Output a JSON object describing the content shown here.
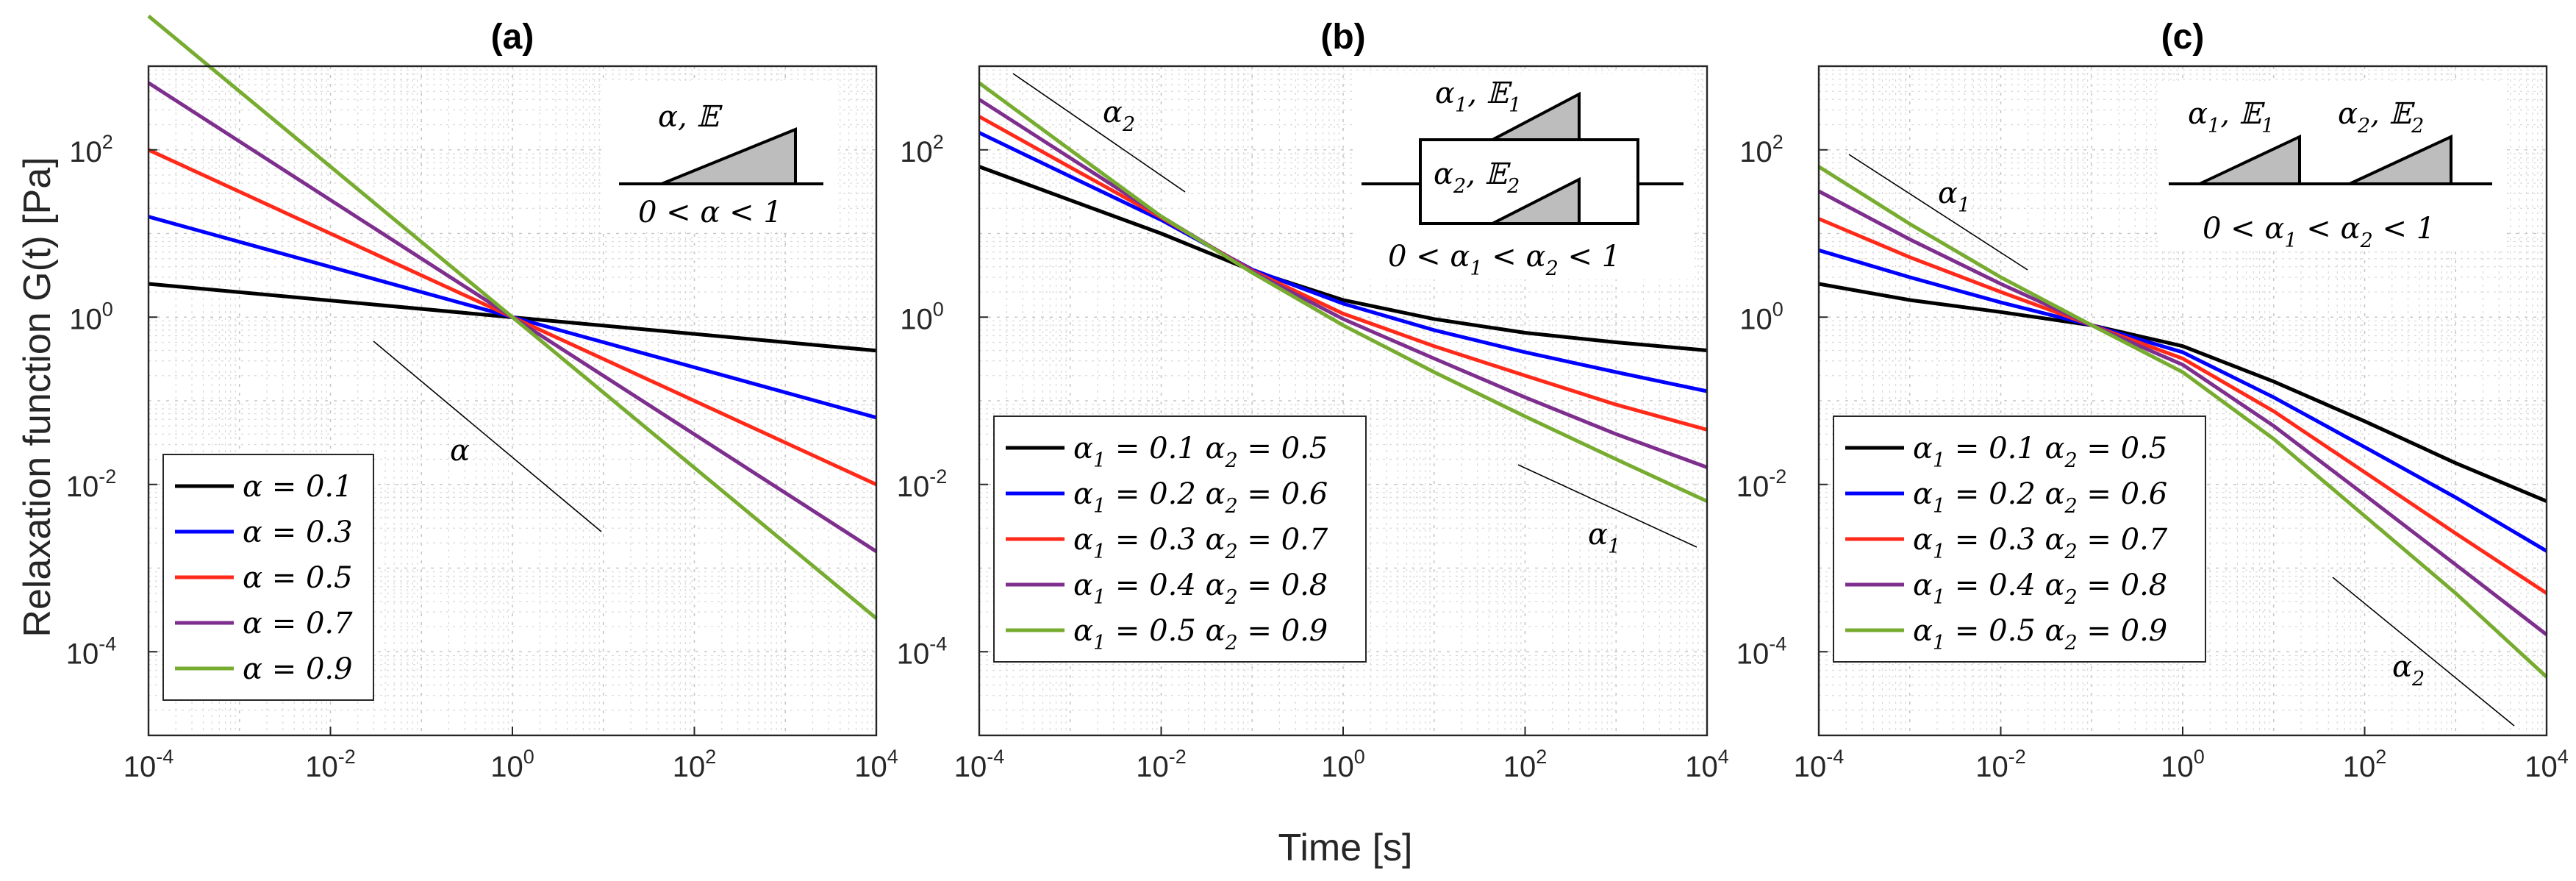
{
  "figure": {
    "x_axis_label": "Time [s]",
    "y_axis_label": "Relaxation function G(t) [Pa]"
  },
  "chart_data": [
    {
      "type": "line",
      "panel": "(a)",
      "title": "(a)",
      "xlabel": "Time [s]",
      "ylabel": "Relaxation function G(t) [Pa]",
      "xscale": "log",
      "yscale": "log",
      "xlim": [
        0.0001,
        10000
      ],
      "ylim": [
        1e-05,
        1000
      ],
      "grid": true,
      "x_ticks": [
        {
          "base": "10",
          "exp": "-4"
        },
        {
          "base": "10",
          "exp": "-2"
        },
        {
          "base": "10",
          "exp": "0"
        },
        {
          "base": "10",
          "exp": "2"
        },
        {
          "base": "10",
          "exp": "4"
        }
      ],
      "y_ticks": [
        {
          "base": "10",
          "exp": "-4"
        },
        {
          "base": "10",
          "exp": "-2"
        },
        {
          "base": "10",
          "exp": "0"
        },
        {
          "base": "10",
          "exp": "2"
        }
      ],
      "series": [
        {
          "name": "α = 0.1",
          "color": "#000000",
          "x": [
            0.0001,
            10000
          ],
          "y": [
            2.5,
            0.398
          ]
        },
        {
          "name": "α = 0.3",
          "color": "#0000ff",
          "x": [
            0.0001,
            10000
          ],
          "y": [
            15.85,
            0.063
          ]
        },
        {
          "name": "α = 0.5",
          "color": "#ff2a1a",
          "x": [
            0.0001,
            10000
          ],
          "y": [
            100,
            0.01
          ]
        },
        {
          "name": "α = 0.7",
          "color": "#7e2f8e",
          "x": [
            0.0001,
            10000
          ],
          "y": [
            631,
            0.00158
          ]
        },
        {
          "name": "α = 0.9",
          "color": "#77ac30",
          "x": [
            0.0001,
            10000
          ],
          "y": [
            3981,
            0.000251
          ]
        }
      ],
      "legend": {
        "position": "lower-left",
        "entries": [
          {
            "symbol": "α",
            "sub": "",
            "text": " = 0.1"
          },
          {
            "symbol": "α",
            "sub": "",
            "text": " = 0.3"
          },
          {
            "symbol": "α",
            "sub": "",
            "text": " = 0.5"
          },
          {
            "symbol": "α",
            "sub": "",
            "text": " = 0.7"
          },
          {
            "symbol": "α",
            "sub": "",
            "text": " = 0.9"
          }
        ]
      },
      "annotations": {
        "slope_label": "α",
        "schematic_label": "α, 𝔼",
        "schematic_condition": "0 < α < 1"
      }
    },
    {
      "type": "line",
      "panel": "(b)",
      "title": "(b)",
      "xlabel": "Time [s]",
      "ylabel": "Relaxation function G(t) [Pa]",
      "xscale": "log",
      "yscale": "log",
      "xlim": [
        0.0001,
        10000
      ],
      "ylim": [
        1e-05,
        1000
      ],
      "grid": true,
      "x_ticks": [
        {
          "base": "10",
          "exp": "-4"
        },
        {
          "base": "10",
          "exp": "-2"
        },
        {
          "base": "10",
          "exp": "0"
        },
        {
          "base": "10",
          "exp": "2"
        },
        {
          "base": "10",
          "exp": "4"
        }
      ],
      "y_ticks": [
        {
          "base": "10",
          "exp": "-4"
        },
        {
          "base": "10",
          "exp": "-2"
        },
        {
          "base": "10",
          "exp": "0"
        },
        {
          "base": "10",
          "exp": "2"
        }
      ],
      "series": [
        {
          "name": "α1 = 0.1 α2 = 0.5",
          "color": "#000000",
          "x": [
            0.0001,
            0.001,
            0.01,
            0.1,
            1,
            10,
            100,
            1000,
            10000
          ],
          "y": [
            63,
            25,
            10,
            3.6,
            1.6,
            0.95,
            0.65,
            0.5,
            0.4
          ]
        },
        {
          "name": "α1 = 0.2 α2 = 0.6",
          "color": "#0000ff",
          "x": [
            0.0001,
            0.001,
            0.01,
            0.1,
            1,
            10,
            100,
            1000,
            10000
          ],
          "y": [
            160,
            48,
            14.5,
            3.7,
            1.45,
            0.7,
            0.38,
            0.22,
            0.13
          ]
        },
        {
          "name": "α1 = 0.3 α2 = 0.7",
          "color": "#ff2a1a",
          "x": [
            0.0001,
            0.001,
            0.01,
            0.1,
            1,
            10,
            100,
            1000,
            10000
          ],
          "y": [
            250,
            62,
            15.5,
            3.6,
            1.1,
            0.45,
            0.2,
            0.09,
            0.045
          ]
        },
        {
          "name": "α1 = 0.4 α2 = 0.8",
          "color": "#7e2f8e",
          "x": [
            0.0001,
            0.001,
            0.01,
            0.1,
            1,
            10,
            100,
            1000,
            10000
          ],
          "y": [
            400,
            80,
            16,
            3.5,
            0.95,
            0.32,
            0.11,
            0.04,
            0.016
          ]
        },
        {
          "name": "α1 = 0.5 α2 = 0.9",
          "color": "#77ac30",
          "x": [
            0.0001,
            0.001,
            0.01,
            0.1,
            1,
            10,
            100,
            1000,
            10000
          ],
          "y": [
            630,
            100,
            16,
            3.4,
            0.8,
            0.22,
            0.065,
            0.02,
            0.0063
          ]
        }
      ],
      "legend": {
        "position": "lower-left",
        "entries": [
          {
            "symbol": "α",
            "sub": "1",
            "text": " = 0.1  ",
            "symbol2": "α",
            "sub2": "2",
            "text2": " = 0.5"
          },
          {
            "symbol": "α",
            "sub": "1",
            "text": " = 0.2  ",
            "symbol2": "α",
            "sub2": "2",
            "text2": " = 0.6"
          },
          {
            "symbol": "α",
            "sub": "1",
            "text": " = 0.3  ",
            "symbol2": "α",
            "sub2": "2",
            "text2": " = 0.7"
          },
          {
            "symbol": "α",
            "sub": "1",
            "text": " = 0.4  ",
            "symbol2": "α",
            "sub2": "2",
            "text2": " = 0.8"
          },
          {
            "symbol": "α",
            "sub": "1",
            "text": " = 0.5  ",
            "symbol2": "α",
            "sub2": "2",
            "text2": " = 0.9"
          }
        ]
      },
      "annotations": {
        "slope_label_early": "α",
        "slope_label_early_sub": "2",
        "slope_label_late": "α",
        "slope_label_late_sub": "1",
        "schematic_label_top": "α",
        "schematic_label_top_sub": "1",
        "schematic_label_top_rest": ", 𝔼",
        "schematic_label_top_rest_sub": "1",
        "schematic_label_bottom": "α",
        "schematic_label_bottom_sub": "2",
        "schematic_label_bottom_rest": ", 𝔼",
        "schematic_label_bottom_rest_sub": "2",
        "schematic_condition_a": "0 < α",
        "schematic_condition_sub1": "1",
        "schematic_condition_b": " < α",
        "schematic_condition_sub2": "2",
        "schematic_condition_c": " < 1"
      }
    },
    {
      "type": "line",
      "panel": "(c)",
      "title": "(c)",
      "xlabel": "Time [s]",
      "ylabel": "Relaxation function G(t) [Pa]",
      "xscale": "log",
      "yscale": "log",
      "xlim": [
        0.0001,
        10000
      ],
      "ylim": [
        1e-05,
        1000
      ],
      "grid": true,
      "x_ticks": [
        {
          "base": "10",
          "exp": "-4"
        },
        {
          "base": "10",
          "exp": "-2"
        },
        {
          "base": "10",
          "exp": "0"
        },
        {
          "base": "10",
          "exp": "2"
        },
        {
          "base": "10",
          "exp": "4"
        }
      ],
      "y_ticks": [
        {
          "base": "10",
          "exp": "-4"
        },
        {
          "base": "10",
          "exp": "-2"
        },
        {
          "base": "10",
          "exp": "0"
        },
        {
          "base": "10",
          "exp": "2"
        }
      ],
      "series": [
        {
          "name": "α1 = 0.1 α2 = 0.5",
          "color": "#000000",
          "x": [
            0.0001,
            0.001,
            0.01,
            0.1,
            1,
            10,
            100,
            1000,
            10000
          ],
          "y": [
            2.5,
            1.6,
            1.15,
            0.8,
            0.45,
            0.17,
            0.057,
            0.018,
            0.0063
          ]
        },
        {
          "name": "α1 = 0.2 α2 = 0.6",
          "color": "#0000ff",
          "x": [
            0.0001,
            0.001,
            0.01,
            0.1,
            1,
            10,
            100,
            1000,
            10000
          ],
          "y": [
            6.3,
            3.0,
            1.5,
            0.8,
            0.38,
            0.11,
            0.028,
            0.007,
            0.0016
          ]
        },
        {
          "name": "α1 = 0.3 α2 = 0.7",
          "color": "#ff2a1a",
          "x": [
            0.0001,
            0.001,
            0.01,
            0.1,
            1,
            10,
            100,
            1000,
            10000
          ],
          "y": [
            15,
            5.2,
            2.0,
            0.8,
            0.32,
            0.075,
            0.014,
            0.0026,
            0.0005
          ]
        },
        {
          "name": "α1 = 0.4 α2 = 0.8",
          "color": "#7e2f8e",
          "x": [
            0.0001,
            0.001,
            0.01,
            0.1,
            1,
            10,
            100,
            1000,
            10000
          ],
          "y": [
            32,
            8.5,
            2.5,
            0.8,
            0.27,
            0.05,
            0.0075,
            0.0011,
            0.00016
          ]
        },
        {
          "name": "α1 = 0.5 α2 = 0.9",
          "color": "#77ac30",
          "x": [
            0.0001,
            0.001,
            0.01,
            0.1,
            1,
            10,
            100,
            1000,
            10000
          ],
          "y": [
            63,
            13,
            3.0,
            0.8,
            0.22,
            0.035,
            0.0042,
            0.0005,
            5e-05
          ]
        }
      ],
      "legend": {
        "position": "lower-left",
        "entries": [
          {
            "symbol": "α",
            "sub": "1",
            "text": " = 0.1  ",
            "symbol2": "α",
            "sub2": "2",
            "text2": " = 0.5"
          },
          {
            "symbol": "α",
            "sub": "1",
            "text": " = 0.2  ",
            "symbol2": "α",
            "sub2": "2",
            "text2": " = 0.6"
          },
          {
            "symbol": "α",
            "sub": "1",
            "text": " = 0.3  ",
            "symbol2": "α",
            "sub2": "2",
            "text2": " = 0.7"
          },
          {
            "symbol": "α",
            "sub": "1",
            "text": " = 0.4  ",
            "symbol2": "α",
            "sub2": "2",
            "text2": " = 0.8"
          },
          {
            "symbol": "α",
            "sub": "1",
            "text": " = 0.5  ",
            "symbol2": "α",
            "sub2": "2",
            "text2": " = 0.9"
          }
        ]
      },
      "annotations": {
        "slope_label_early": "α",
        "slope_label_early_sub": "1",
        "slope_label_late": "α",
        "slope_label_late_sub": "2",
        "schematic_label_left": "α",
        "schematic_label_left_sub": "1",
        "schematic_label_left_rest": ", 𝔼",
        "schematic_label_left_rest_sub": "1",
        "schematic_label_right": "α",
        "schematic_label_right_sub": "2",
        "schematic_label_right_rest": ", 𝔼",
        "schematic_label_right_rest_sub": "2",
        "schematic_condition_a": "0 < α",
        "schematic_condition_sub1": "1",
        "schematic_condition_b": " < α",
        "schematic_condition_sub2": "2",
        "schematic_condition_c": " < 1"
      }
    }
  ]
}
